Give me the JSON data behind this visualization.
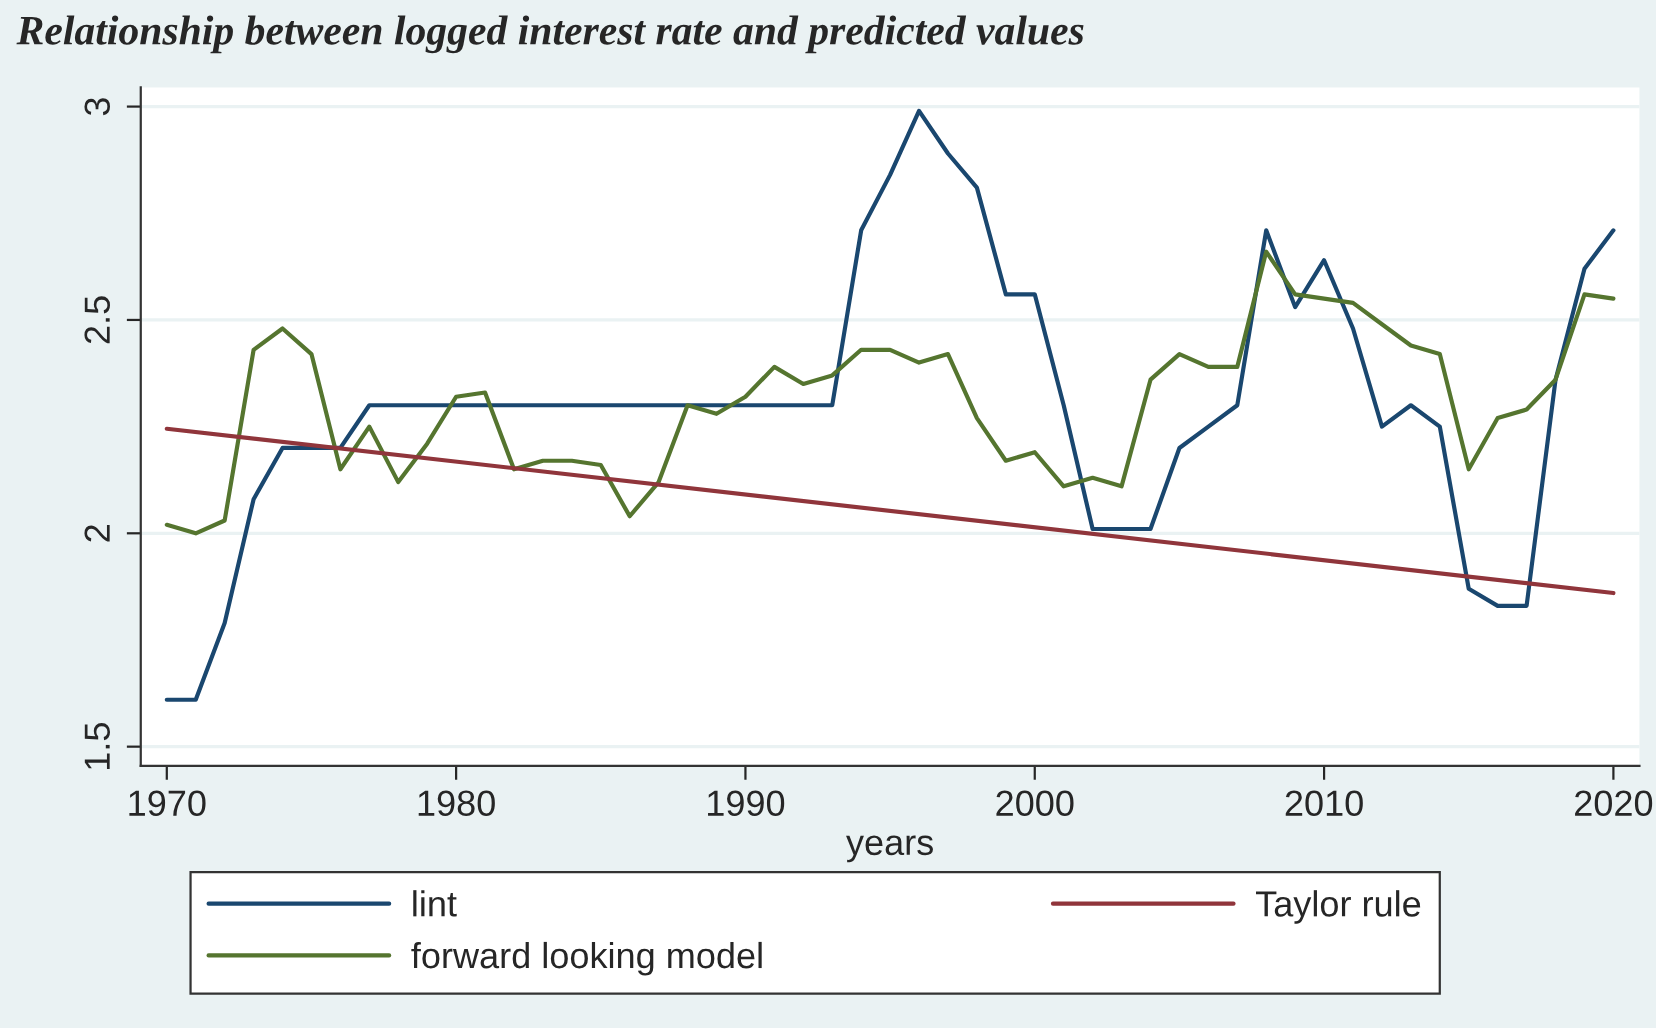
{
  "chart_data": {
    "type": "line",
    "title": "Relationship between logged interest rate and predicted values",
    "xlabel": "years",
    "xlim": [
      1969.1,
      2020.9
    ],
    "xticks": [
      1970,
      1980,
      1990,
      2000,
      2010,
      2020
    ],
    "ylim": [
      1.455,
      3.045
    ],
    "yticks": [
      1.5,
      2,
      2.5,
      3
    ],
    "grid": "y",
    "legend": "bottom",
    "marker": "none",
    "line_style": "solid",
    "series": [
      {
        "name": "lint",
        "color": "#1a476f",
        "x": [
          1970,
          1971,
          1972,
          1973,
          1974,
          1975,
          1976,
          1977,
          1978,
          1979,
          1980,
          1981,
          1982,
          1983,
          1984,
          1985,
          1986,
          1987,
          1988,
          1989,
          1990,
          1991,
          1992,
          1993,
          1994,
          1995,
          1996,
          1997,
          1998,
          1999,
          2000,
          2001,
          2002,
          2003,
          2004,
          2005,
          2006,
          2007,
          2008,
          2009,
          2010,
          2011,
          2012,
          2013,
          2014,
          2015,
          2016,
          2017,
          2018,
          2019,
          2020
        ],
        "values": [
          1.61,
          1.61,
          1.79,
          2.08,
          2.2,
          2.2,
          2.2,
          2.3,
          2.3,
          2.3,
          2.3,
          2.3,
          2.3,
          2.3,
          2.3,
          2.3,
          2.3,
          2.3,
          2.3,
          2.3,
          2.3,
          2.3,
          2.3,
          2.3,
          2.71,
          2.84,
          2.99,
          2.89,
          2.81,
          2.56,
          2.56,
          2.3,
          2.01,
          2.01,
          2.01,
          2.2,
          2.25,
          2.3,
          2.71,
          2.53,
          2.64,
          2.48,
          2.25,
          2.3,
          2.25,
          1.87,
          1.83,
          1.83,
          2.36,
          2.62,
          2.71
        ]
      },
      {
        "name": "forward looking model",
        "color": "#55752f",
        "x": [
          1970,
          1971,
          1972,
          1973,
          1974,
          1975,
          1976,
          1977,
          1978,
          1979,
          1980,
          1981,
          1982,
          1983,
          1984,
          1985,
          1986,
          1987,
          1988,
          1989,
          1990,
          1991,
          1992,
          1993,
          1994,
          1995,
          1996,
          1997,
          1998,
          1999,
          2000,
          2001,
          2002,
          2003,
          2004,
          2005,
          2006,
          2007,
          2008,
          2009,
          2010,
          2011,
          2012,
          2013,
          2014,
          2015,
          2016,
          2017,
          2018,
          2019,
          2020
        ],
        "values": [
          2.02,
          2.0,
          2.03,
          2.43,
          2.48,
          2.42,
          2.15,
          2.25,
          2.12,
          2.21,
          2.32,
          2.33,
          2.15,
          2.17,
          2.17,
          2.16,
          2.04,
          2.12,
          2.3,
          2.28,
          2.32,
          2.39,
          2.35,
          2.37,
          2.43,
          2.43,
          2.4,
          2.42,
          2.27,
          2.17,
          2.19,
          2.11,
          2.13,
          2.11,
          2.36,
          2.42,
          2.39,
          2.39,
          2.66,
          2.56,
          2.55,
          2.54,
          2.49,
          2.44,
          2.42,
          2.15,
          2.27,
          2.29,
          2.36,
          2.56,
          2.55
        ]
      },
      {
        "name": "Taylor rule",
        "color": "#90353b",
        "x": [
          1970,
          2020
        ],
        "values": [
          2.245,
          1.86
        ]
      }
    ]
  }
}
